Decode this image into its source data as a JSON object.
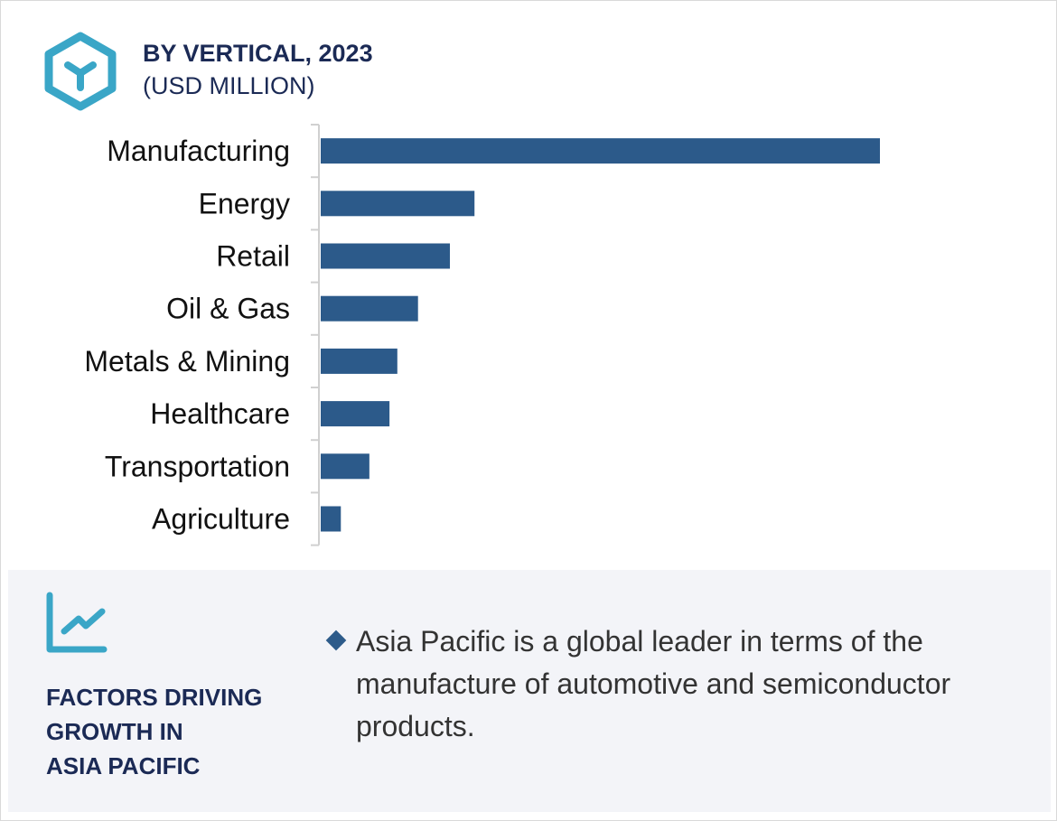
{
  "header": {
    "title": "BY VERTICAL, 2023",
    "subtitle": "(USD MILLION)",
    "icon": "cube-icon",
    "icon_color": "#3aa6c7"
  },
  "chart_data": {
    "type": "bar",
    "orientation": "horizontal",
    "title": "BY VERTICAL, 2023",
    "subtitle": "(USD MILLION)",
    "categories": [
      "Manufacturing",
      "Energy",
      "Retail",
      "Oil & Gas",
      "Metals & Mining",
      "Healthcare",
      "Transportation",
      "Agriculture"
    ],
    "values": [
      100,
      27.5,
      23.1,
      17.4,
      13.7,
      12.3,
      8.7,
      3.6
    ],
    "value_note_scale": "relative (no axis values printed)",
    "bar_color": "#2c5a8a",
    "grid": false,
    "legend": "none"
  },
  "footer": {
    "icon": "trend-line-chart-icon",
    "heading": [
      "FACTORS DRIVING",
      "GROWTH IN",
      "ASIA PACIFIC"
    ],
    "bullet": "Asia Pacific is a global leader in terms of the manufacture of automotive and semiconductor products.",
    "bullet_icon": "diamond-icon"
  }
}
